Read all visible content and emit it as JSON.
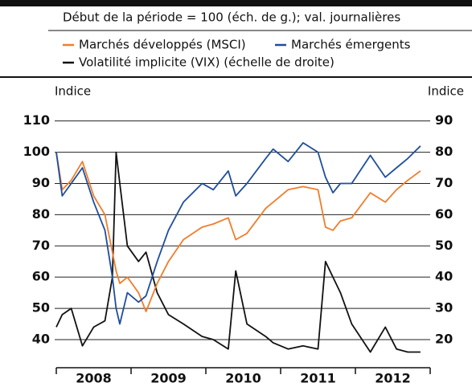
{
  "chart_data": {
    "type": "line",
    "subtitle": "Début de la période = 100 (éch. de g.); val. journalières",
    "ylabel": "Indice",
    "y2label": "Indice",
    "x": [
      2008.0,
      2008.08,
      2008.2,
      2008.35,
      2008.5,
      2008.65,
      2008.75,
      2008.8,
      2008.85,
      2008.95,
      2009.1,
      2009.2,
      2009.35,
      2009.5,
      2009.7,
      2009.95,
      2010.1,
      2010.3,
      2010.4,
      2010.55,
      2010.8,
      2010.9,
      2011.1,
      2011.3,
      2011.5,
      2011.6,
      2011.7,
      2011.8,
      2011.95,
      2012.2,
      2012.4,
      2012.55,
      2012.7,
      2012.87
    ],
    "xlim": [
      2008,
      2013
    ],
    "xticks": [
      2008,
      2009,
      2010,
      2011,
      2012,
      2013
    ],
    "xlabels": [
      {
        "value": 2008.5,
        "label": "2008"
      },
      {
        "value": 2009.5,
        "label": "2009"
      },
      {
        "value": 2010.5,
        "label": "2010"
      },
      {
        "value": 2011.5,
        "label": "2011"
      },
      {
        "value": 2012.5,
        "label": "2012"
      }
    ],
    "ylim": [
      31,
      113
    ],
    "yticks": [
      40,
      50,
      60,
      70,
      80,
      90,
      100,
      110
    ],
    "y2lim": [
      11,
      93
    ],
    "y2ticks": [
      20,
      30,
      40,
      50,
      60,
      70,
      80,
      90
    ],
    "grid": true,
    "series": [
      {
        "name": "Marchés développés (MSCI)",
        "color": "#f07d2a",
        "values": [
          100,
          88,
          91,
          97,
          86,
          80,
          68,
          62,
          58,
          60,
          55,
          49,
          58,
          65,
          72,
          76,
          77,
          79,
          72,
          74,
          82,
          84,
          88,
          89,
          88,
          76,
          75,
          78,
          79,
          87,
          84,
          88,
          91,
          94
        ]
      },
      {
        "name": "Marchés émergents",
        "color": "#1f4e9c",
        "values": [
          100,
          86,
          90,
          95,
          84,
          75,
          60,
          50,
          45,
          55,
          52,
          54,
          65,
          75,
          84,
          90,
          88,
          94,
          86,
          90,
          98,
          101,
          97,
          103,
          100,
          92,
          87,
          90,
          90,
          99,
          92,
          95,
          98,
          102
        ]
      },
      {
        "name": "Volatilité implicite (VIX) (échelle de droite)",
        "color": "#111111",
        "axis": "y2",
        "values": [
          24,
          28,
          30,
          18,
          24,
          26,
          40,
          80,
          70,
          50,
          45,
          48,
          35,
          28,
          25,
          21,
          20,
          17,
          42,
          25,
          21,
          19,
          17,
          18,
          17,
          45,
          40,
          35,
          25,
          16,
          24,
          17,
          16,
          16
        ]
      }
    ]
  }
}
